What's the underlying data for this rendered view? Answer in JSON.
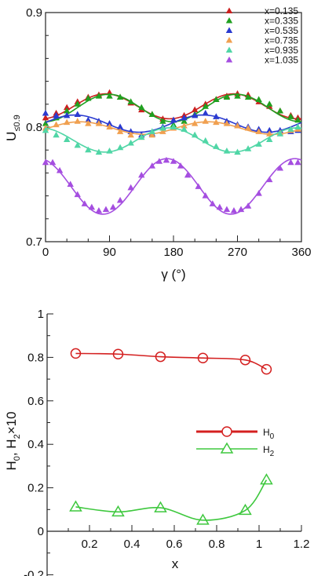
{
  "chart_data": [
    {
      "type": "scatter",
      "xlabel": "γ (°)",
      "ylabel": "U",
      "ylabel_sub": "≤0.9",
      "xlim": [
        0,
        360
      ],
      "ylim": [
        0.7,
        0.9
      ],
      "x_ticks": [
        0,
        90,
        180,
        270,
        360
      ],
      "x_tick_labels": [
        "0",
        "90",
        "180",
        "270",
        "360"
      ],
      "y_ticks": [
        0.7,
        0.8,
        0.9
      ],
      "y_tick_labels": [
        "0.7",
        "0.8",
        "0.9"
      ],
      "grid": false,
      "legend_position": "top-right",
      "marker": "filled-triangle",
      "fit": "sinusoidal period 180",
      "series": [
        {
          "name": "x=0.135",
          "color": "#cc1f1f",
          "points": [
            [
              0,
              0.808
            ],
            [
              15,
              0.812
            ],
            [
              30,
              0.817
            ],
            [
              45,
              0.822
            ],
            [
              60,
              0.826
            ],
            [
              75,
              0.828
            ],
            [
              90,
              0.83
            ],
            [
              105,
              0.826
            ],
            [
              120,
              0.821
            ],
            [
              135,
              0.815
            ],
            [
              150,
              0.811
            ],
            [
              165,
              0.807
            ],
            [
              180,
              0.806
            ],
            [
              195,
              0.81
            ],
            [
              210,
              0.815
            ],
            [
              225,
              0.82
            ],
            [
              240,
              0.824
            ],
            [
              255,
              0.827
            ],
            [
              270,
              0.829
            ],
            [
              285,
              0.828
            ],
            [
              300,
              0.822
            ],
            [
              315,
              0.818
            ],
            [
              330,
              0.814
            ],
            [
              345,
              0.81
            ],
            [
              355,
              0.808
            ]
          ]
        },
        {
          "name": "x=0.335",
          "color": "#20a020",
          "points": [
            [
              0,
              0.803
            ],
            [
              15,
              0.808
            ],
            [
              30,
              0.814
            ],
            [
              45,
              0.82
            ],
            [
              60,
              0.825
            ],
            [
              75,
              0.827
            ],
            [
              90,
              0.827
            ],
            [
              105,
              0.826
            ],
            [
              120,
              0.822
            ],
            [
              135,
              0.817
            ],
            [
              150,
              0.811
            ],
            [
              165,
              0.805
            ],
            [
              180,
              0.802
            ],
            [
              195,
              0.805
            ],
            [
              210,
              0.811
            ],
            [
              225,
              0.818
            ],
            [
              240,
              0.824
            ],
            [
              255,
              0.826
            ],
            [
              270,
              0.827
            ],
            [
              285,
              0.826
            ],
            [
              300,
              0.824
            ],
            [
              315,
              0.82
            ],
            [
              330,
              0.814
            ],
            [
              345,
              0.809
            ],
            [
              355,
              0.806
            ]
          ]
        },
        {
          "name": "x=0.535",
          "color": "#2a3ad0",
          "points": [
            [
              0,
              0.812
            ],
            [
              15,
              0.81
            ],
            [
              30,
              0.81
            ],
            [
              45,
              0.811
            ],
            [
              60,
              0.806
            ],
            [
              75,
              0.805
            ],
            [
              90,
              0.803
            ],
            [
              105,
              0.8
            ],
            [
              120,
              0.796
            ],
            [
              135,
              0.793
            ],
            [
              150,
              0.794
            ],
            [
              165,
              0.8
            ],
            [
              180,
              0.806
            ],
            [
              195,
              0.808
            ],
            [
              210,
              0.81
            ],
            [
              225,
              0.812
            ],
            [
              240,
              0.809
            ],
            [
              255,
              0.805
            ],
            [
              270,
              0.802
            ],
            [
              285,
              0.8
            ],
            [
              300,
              0.798
            ],
            [
              315,
              0.797
            ],
            [
              330,
              0.797
            ],
            [
              345,
              0.796
            ],
            [
              355,
              0.797
            ]
          ]
        },
        {
          "name": "x=0.735",
          "color": "#f0a050",
          "points": [
            [
              0,
              0.799
            ],
            [
              15,
              0.802
            ],
            [
              30,
              0.804
            ],
            [
              45,
              0.805
            ],
            [
              60,
              0.803
            ],
            [
              75,
              0.803
            ],
            [
              90,
              0.8
            ],
            [
              105,
              0.796
            ],
            [
              120,
              0.793
            ],
            [
              135,
              0.791
            ],
            [
              150,
              0.793
            ],
            [
              165,
              0.796
            ],
            [
              180,
              0.799
            ],
            [
              195,
              0.801
            ],
            [
              210,
              0.803
            ],
            [
              225,
              0.805
            ],
            [
              240,
              0.804
            ],
            [
              255,
              0.803
            ],
            [
              270,
              0.801
            ],
            [
              285,
              0.799
            ],
            [
              300,
              0.796
            ],
            [
              315,
              0.794
            ],
            [
              330,
              0.795
            ],
            [
              345,
              0.797
            ],
            [
              355,
              0.798
            ]
          ]
        },
        {
          "name": "x=0.935",
          "color": "#50d6a6",
          "points": [
            [
              0,
              0.797
            ],
            [
              15,
              0.793
            ],
            [
              30,
              0.789
            ],
            [
              45,
              0.784
            ],
            [
              60,
              0.78
            ],
            [
              75,
              0.778
            ],
            [
              90,
              0.779
            ],
            [
              105,
              0.782
            ],
            [
              120,
              0.786
            ],
            [
              135,
              0.791
            ],
            [
              150,
              0.796
            ],
            [
              165,
              0.799
            ],
            [
              180,
              0.8
            ],
            [
              195,
              0.798
            ],
            [
              210,
              0.793
            ],
            [
              225,
              0.788
            ],
            [
              240,
              0.783
            ],
            [
              255,
              0.779
            ],
            [
              270,
              0.778
            ],
            [
              285,
              0.781
            ],
            [
              300,
              0.785
            ],
            [
              315,
              0.789
            ],
            [
              330,
              0.794
            ],
            [
              345,
              0.798
            ],
            [
              355,
              0.8
            ]
          ]
        },
        {
          "name": "x=1.035",
          "color": "#a54ee0",
          "points": [
            [
              0,
              0.769
            ],
            [
              10,
              0.769
            ],
            [
              20,
              0.762
            ],
            [
              35,
              0.75
            ],
            [
              45,
              0.741
            ],
            [
              55,
              0.733
            ],
            [
              65,
              0.73
            ],
            [
              75,
              0.727
            ],
            [
              85,
              0.728
            ],
            [
              95,
              0.73
            ],
            [
              105,
              0.736
            ],
            [
              120,
              0.747
            ],
            [
              135,
              0.758
            ],
            [
              150,
              0.766
            ],
            [
              160,
              0.77
            ],
            [
              170,
              0.771
            ],
            [
              180,
              0.77
            ],
            [
              190,
              0.766
            ],
            [
              200,
              0.758
            ],
            [
              215,
              0.748
            ],
            [
              225,
              0.74
            ],
            [
              235,
              0.733
            ],
            [
              245,
              0.73
            ],
            [
              255,
              0.728
            ],
            [
              265,
              0.727
            ],
            [
              275,
              0.728
            ],
            [
              285,
              0.731
            ],
            [
              300,
              0.742
            ],
            [
              315,
              0.754
            ],
            [
              330,
              0.764
            ],
            [
              345,
              0.769
            ],
            [
              355,
              0.769
            ]
          ]
        }
      ]
    },
    {
      "type": "line",
      "xlabel": "x",
      "ylabel": "H",
      "ylabel_parts": [
        "H",
        "0",
        ", H",
        "2",
        "×10"
      ],
      "xlim": [
        0,
        1.2
      ],
      "ylim": [
        -0.2,
        1
      ],
      "x_ticks": [
        0.2,
        0.4,
        0.6,
        0.8,
        1,
        1.2
      ],
      "x_tick_labels": [
        "0.2",
        "0.4",
        "0.6",
        "0.8",
        "1",
        "1.2"
      ],
      "y_ticks": [
        -0.2,
        0,
        0.2,
        0.4,
        0.6,
        0.8,
        1
      ],
      "y_tick_labels": [
        "-0.2",
        "0",
        "0.2",
        "0.4",
        "0.6",
        "0.8",
        "1"
      ],
      "grid": false,
      "legend_position": "center-right",
      "series": [
        {
          "name": "H",
          "name_sub": "0",
          "color": "#d42020",
          "marker": "circle",
          "x": [
            0.135,
            0.335,
            0.535,
            0.735,
            0.935,
            1.035
          ],
          "y": [
            0.818,
            0.815,
            0.803,
            0.797,
            0.788,
            0.745
          ]
        },
        {
          "name": "H",
          "name_sub": "2",
          "color": "#3ec83e",
          "marker": "triangle",
          "x": [
            0.135,
            0.335,
            0.535,
            0.735,
            0.935,
            1.035
          ],
          "y": [
            0.112,
            0.089,
            0.108,
            0.051,
            0.096,
            0.236
          ]
        }
      ]
    }
  ]
}
